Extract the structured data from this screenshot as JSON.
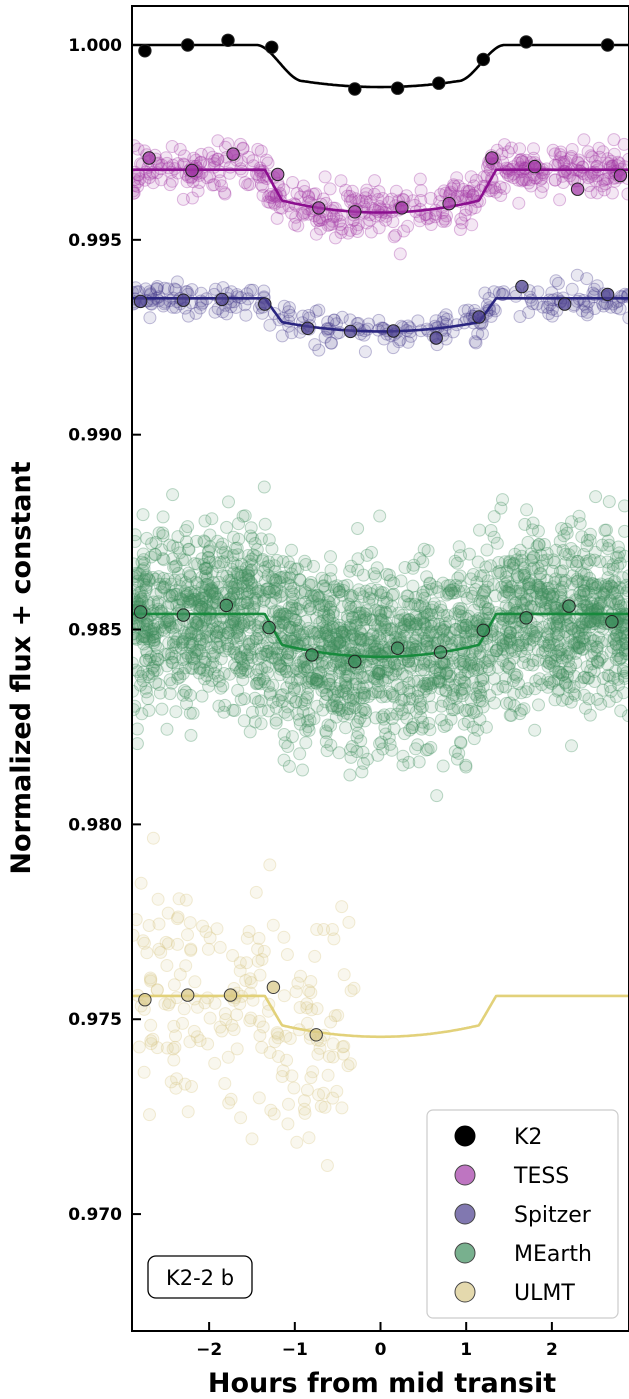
{
  "chart_data": {
    "type": "scatter",
    "title": "",
    "xlabel": "Hours from mid transit",
    "ylabel": "Normalized flux + constant",
    "xlim": [
      -2.9,
      2.9
    ],
    "ylim": [
      0.967,
      1.001
    ],
    "xticks": [
      -2,
      -1,
      0,
      1,
      2
    ],
    "xtick_labels": [
      "−2",
      "−1",
      "0",
      "1",
      "2"
    ],
    "yticks": [
      0.97,
      0.975,
      0.98,
      0.985,
      0.99,
      0.995,
      1.0
    ],
    "ytick_labels": [
      "0.970",
      "0.975",
      "0.980",
      "0.985",
      "0.990",
      "0.995",
      "1.000"
    ],
    "grid": false,
    "legend_position": "bottom-right",
    "annotation": "K2-2 b",
    "transit_model": {
      "ingress_start": -1.35,
      "ingress_end": -1.15,
      "egress_start": 1.15,
      "egress_end": 1.35
    },
    "series": [
      {
        "name": "K2",
        "color": "#000000",
        "baseline": 1.0,
        "depth": 0.00108,
        "smooth_ingress": true,
        "binned": [
          {
            "x": -2.75,
            "y": 0.99985
          },
          {
            "x": -2.25,
            "y": 1.0
          },
          {
            "x": -1.78,
            "y": 1.00012
          },
          {
            "x": -1.27,
            "y": 0.99994
          },
          {
            "x": -0.3,
            "y": 0.99887
          },
          {
            "x": 0.2,
            "y": 0.99889
          },
          {
            "x": 0.68,
            "y": 0.99902
          },
          {
            "x": 1.2,
            "y": 0.99963
          },
          {
            "x": 1.7,
            "y": 1.00008
          },
          {
            "x": 2.65,
            "y": 1.0
          }
        ],
        "raw_count": 0
      },
      {
        "name": "TESS",
        "color": "#a23aa6",
        "line_color": "#8b0f8f",
        "baseline": 0.9968,
        "depth": 0.0011,
        "binned": [
          {
            "x": -2.7,
            "y": 0.9971
          },
          {
            "x": -2.2,
            "y": 0.99678
          },
          {
            "x": -1.72,
            "y": 0.9972
          },
          {
            "x": -1.2,
            "y": 0.99668
          },
          {
            "x": -0.72,
            "y": 0.99582
          },
          {
            "x": -0.3,
            "y": 0.99572
          },
          {
            "x": 0.25,
            "y": 0.99582
          },
          {
            "x": 0.8,
            "y": 0.99593
          },
          {
            "x": 1.3,
            "y": 0.9971
          },
          {
            "x": 1.8,
            "y": 0.99688
          },
          {
            "x": 2.3,
            "y": 0.9963
          },
          {
            "x": 2.8,
            "y": 0.99665
          }
        ],
        "raw_count": 520,
        "raw_sigma": 0.00055,
        "raw_ylim": [
          0.9946,
          0.9985
        ]
      },
      {
        "name": "Spitzer",
        "color": "#4b3f8e",
        "line_color": "#2a2580",
        "baseline": 0.9935,
        "depth": 0.00085,
        "binned": [
          {
            "x": -2.8,
            "y": 0.99342
          },
          {
            "x": -2.3,
            "y": 0.99345
          },
          {
            "x": -1.85,
            "y": 0.99347
          },
          {
            "x": -1.35,
            "y": 0.99335
          },
          {
            "x": -0.85,
            "y": 0.99273
          },
          {
            "x": -0.35,
            "y": 0.99265
          },
          {
            "x": 0.15,
            "y": 0.99266
          },
          {
            "x": 0.65,
            "y": 0.99248
          },
          {
            "x": 1.15,
            "y": 0.99302
          },
          {
            "x": 1.65,
            "y": 0.9938
          },
          {
            "x": 2.15,
            "y": 0.99335
          },
          {
            "x": 2.65,
            "y": 0.9936
          }
        ],
        "raw_count": 280,
        "raw_sigma": 0.00035,
        "raw_ylim": [
          0.992,
          0.9945
        ]
      },
      {
        "name": "MEarth",
        "color": "#3e8e5e",
        "line_color": "#178a3c",
        "baseline": 0.9854,
        "depth": 0.0011,
        "binned": [
          {
            "x": -2.8,
            "y": 0.98545
          },
          {
            "x": -2.3,
            "y": 0.98537
          },
          {
            "x": -1.8,
            "y": 0.98562
          },
          {
            "x": -1.3,
            "y": 0.98505
          },
          {
            "x": -0.8,
            "y": 0.98435
          },
          {
            "x": -0.3,
            "y": 0.98418
          },
          {
            "x": 0.2,
            "y": 0.98452
          },
          {
            "x": 0.7,
            "y": 0.98442
          },
          {
            "x": 1.2,
            "y": 0.98498
          },
          {
            "x": 1.7,
            "y": 0.9853
          },
          {
            "x": 2.2,
            "y": 0.9856
          },
          {
            "x": 2.7,
            "y": 0.9852
          }
        ],
        "raw_count": 2600,
        "raw_sigma": 0.0018,
        "raw_ylim": [
          0.9735,
          0.997
        ]
      },
      {
        "name": "ULMT",
        "color": "#d9c98a",
        "line_color": "#e2d17a",
        "baseline": 0.9756,
        "depth": 0.00105,
        "binned": [
          {
            "x": -2.75,
            "y": 0.9755
          },
          {
            "x": -2.25,
            "y": 0.97562
          },
          {
            "x": -1.75,
            "y": 0.97562
          },
          {
            "x": -1.25,
            "y": 0.97582
          },
          {
            "x": -0.75,
            "y": 0.9746
          }
        ],
        "raw_count": 210,
        "raw_sigma": 0.0022,
        "raw_ylim": [
          0.967,
          0.9815
        ],
        "raw_xlim": [
          -2.9,
          -0.3
        ]
      }
    ]
  }
}
